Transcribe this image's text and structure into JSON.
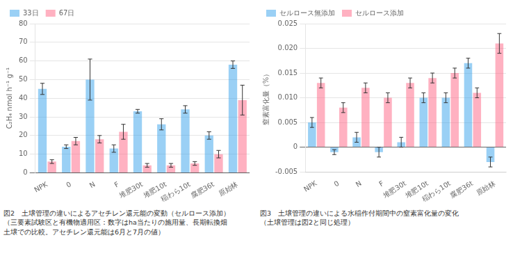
{
  "chart_data": [
    {
      "type": "bar",
      "ylabel": "C₂H₄ nmol h⁻¹ g⁻¹",
      "categories": [
        "NPK",
        "0",
        "N",
        "F",
        "堆肥30t",
        "堆肥10t",
        "稲わら10t",
        "腐肥36t",
        "原始林"
      ],
      "series": [
        {
          "name": "33日",
          "values": [
            45,
            14,
            50,
            13,
            33,
            26,
            34,
            20,
            58
          ],
          "errors": [
            3,
            1,
            11,
            2,
            1,
            3,
            2,
            2,
            2
          ]
        },
        {
          "name": "67日",
          "values": [
            6,
            17,
            18,
            22,
            4,
            4,
            5,
            10,
            39
          ],
          "errors": [
            1,
            2,
            2,
            4,
            1,
            1,
            1,
            2,
            8
          ]
        }
      ],
      "ylim": [
        0,
        80
      ],
      "yticks": [
        0,
        10,
        20,
        30,
        40,
        50,
        60,
        70,
        80
      ],
      "grid": true,
      "legend": "upper left",
      "caption": [
        "図2　土壌管理の違いによるアセチレン還元能の変動（セルロース添加）",
        "（三要素試験区と有機物適用区：数字はha当たりの施用量、長期転換畑",
        "土壌での比較。アセチレン還元能は6月と7月の値）"
      ]
    },
    {
      "type": "bar",
      "ylabel": "窒素富化量（%）",
      "categories": [
        "NPK",
        "0",
        "N",
        "F",
        "堆肥30t",
        "堆肥10t",
        "稲わら10t",
        "腐肥36t",
        "原始林"
      ],
      "series": [
        {
          "name": "セルロース無添加",
          "values": [
            0.005,
            -0.001,
            0.002,
            -0.001,
            0.001,
            0.01,
            0.01,
            0.017,
            -0.003
          ],
          "errors": [
            0.001,
            0.0005,
            0.001,
            0.001,
            0.001,
            0.001,
            0.001,
            0.001,
            0.001
          ]
        },
        {
          "name": "セルロース添加",
          "values": [
            0.013,
            0.008,
            0.012,
            0.01,
            0.013,
            0.014,
            0.015,
            0.011,
            0.021
          ],
          "errors": [
            0.001,
            0.001,
            0.001,
            0.001,
            0.001,
            0.001,
            0.001,
            0.001,
            0.002
          ]
        }
      ],
      "ylim": [
        -0.005,
        0.025
      ],
      "yticks": [
        -0.005,
        0,
        0.005,
        {
          "value": 0.01,
          "label": "0.010"
        },
        0.015,
        {
          "value": 0.02,
          "label": "0.020"
        },
        0.025
      ],
      "grid": true,
      "legend": "upper left",
      "caption": [
        "図3　土壌管理の違いによる水稲作付期間中の窒素富化量の変化",
        "（土壌管理は図2と同じ処理）"
      ]
    }
  ]
}
